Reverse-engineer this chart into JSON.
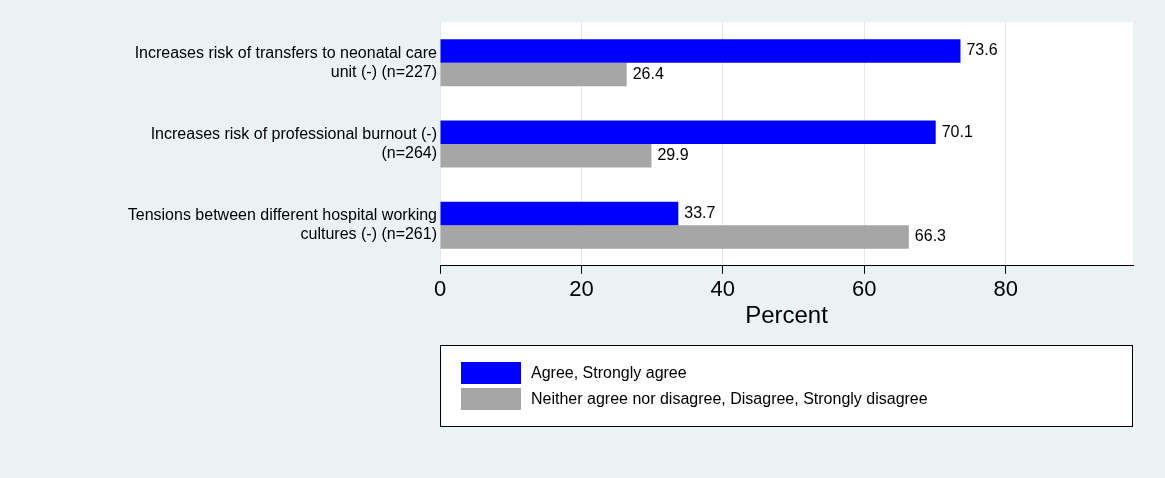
{
  "chart_data": {
    "type": "bar",
    "orientation": "horizontal",
    "xlabel": "Percent",
    "categories": [
      "Increases risk of transfers to neonatal care unit (-) (n=227)",
      "Increases risk of professional burnout (-) (n=264)",
      "Tensions between different hospital working cultures (-) (n=261)"
    ],
    "series": [
      {
        "name": "Agree, Strongly agree",
        "color": "#0000ff",
        "values": [
          73.6,
          70.1,
          33.7
        ]
      },
      {
        "name": "Neither agree nor disagree, Disagree, Strongly disagree",
        "color": "#a6a6a6",
        "values": [
          26.4,
          29.9,
          66.3
        ]
      }
    ],
    "xlim": [
      0,
      98
    ],
    "xticks": [
      0,
      20,
      40,
      60,
      80
    ],
    "grid": "x",
    "legend": "bottom",
    "data_labels": true
  }
}
